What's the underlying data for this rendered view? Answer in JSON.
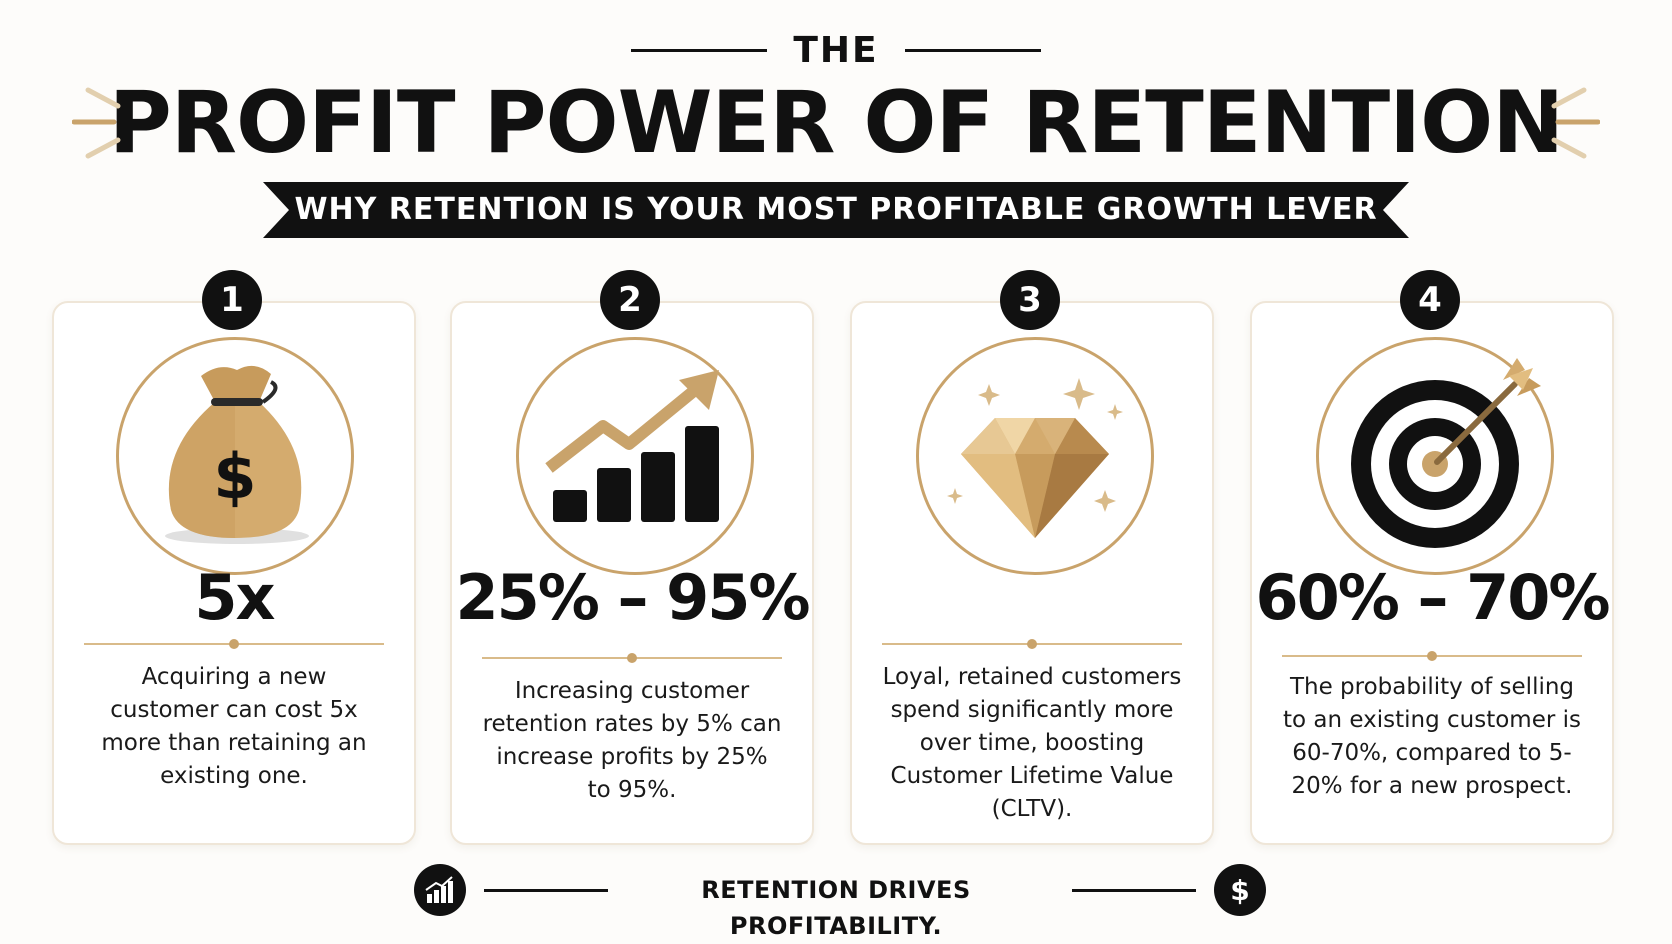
{
  "header": {
    "pretitle": "THE",
    "title": "PROFIT POWER OF RETENTION",
    "subtitle": "WHY RETENTION IS YOUR MOST PROFITABLE GROWTH LEVER"
  },
  "colors": {
    "accent_gold": "#c9a36b",
    "dark": "#111111",
    "background": "#fdfcfa"
  },
  "cards": [
    {
      "number": "1",
      "icon": "money-bag-icon",
      "stat": "5x",
      "description": "Acquiring a new customer can cost 5x more than retaining an existing one."
    },
    {
      "number": "2",
      "icon": "growth-chart-icon",
      "stat": "25% – 95%",
      "description": "Increasing customer retention rates by 5% can increase profits by 25% to 95%."
    },
    {
      "number": "3",
      "icon": "diamond-icon",
      "stat": "",
      "description": "Loyal, retained customers spend significantly more over time, boosting Customer Lifetime Value (CLTV)."
    },
    {
      "number": "4",
      "icon": "target-arrow-icon",
      "stat": "60% – 70%",
      "description": "The probability of selling to an existing customer is 60-70%, compared to 5-20% for a new prospect."
    }
  ],
  "footer": {
    "text": "RETENTION DRIVES PROFITABILITY.",
    "left_icon": "bar-chart-icon",
    "right_icon": "dollar-icon"
  }
}
